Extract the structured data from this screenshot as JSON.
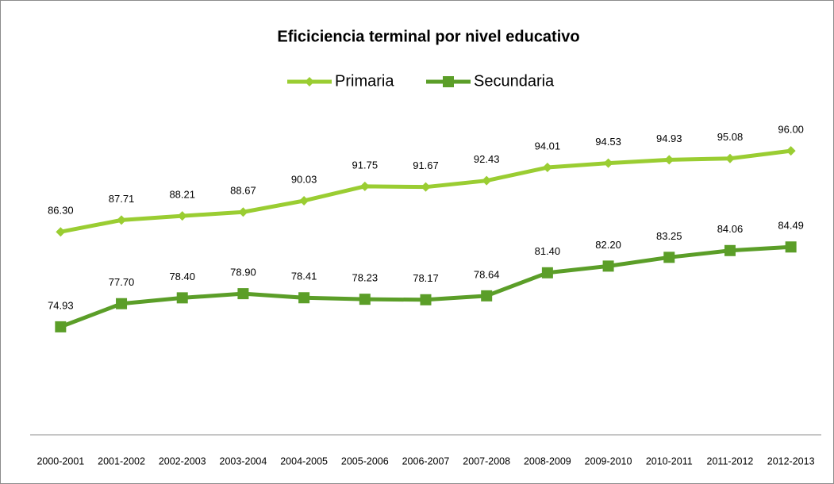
{
  "chart_data": {
    "type": "line",
    "title": "Eficiciencia terminal por nivel educativo",
    "categories": [
      "2000-2001",
      "2001-2002",
      "2002-2003",
      "2003-2004",
      "2004-2005",
      "2005-2006",
      "2006-2007",
      "2007-2008",
      "2008-2009",
      "2009-2010",
      "2010-2011",
      "2011-2012",
      "2012-2013"
    ],
    "series": [
      {
        "name": "Primaria",
        "color": "#9acd32",
        "marker": "diamond",
        "values": [
          86.3,
          87.71,
          88.21,
          88.67,
          90.03,
          91.75,
          91.67,
          92.43,
          94.01,
          94.53,
          94.93,
          95.08,
          96
        ],
        "value_labels": [
          "86.30",
          "87.71",
          "88.21",
          "88.67",
          "90.03",
          "91.75",
          "91.67",
          "92.43",
          "94.01",
          "94.53",
          "94.93",
          "95.08",
          "96.00"
        ]
      },
      {
        "name": "Secundaria",
        "color": "#5b9e28",
        "marker": "square",
        "values": [
          74.93,
          77.7,
          78.4,
          78.9,
          78.41,
          78.23,
          78.17,
          78.64,
          81.4,
          82.2,
          83.25,
          84.06,
          84.49
        ],
        "value_labels": [
          "74.93",
          "77.70",
          "78.40",
          "78.90",
          "78.41",
          "78.23",
          "78.17",
          "78.64",
          "81.40",
          "82.20",
          "83.25",
          "84.06",
          "84.49"
        ]
      }
    ],
    "ylim": [
      62,
      100
    ],
    "legend": "top"
  }
}
